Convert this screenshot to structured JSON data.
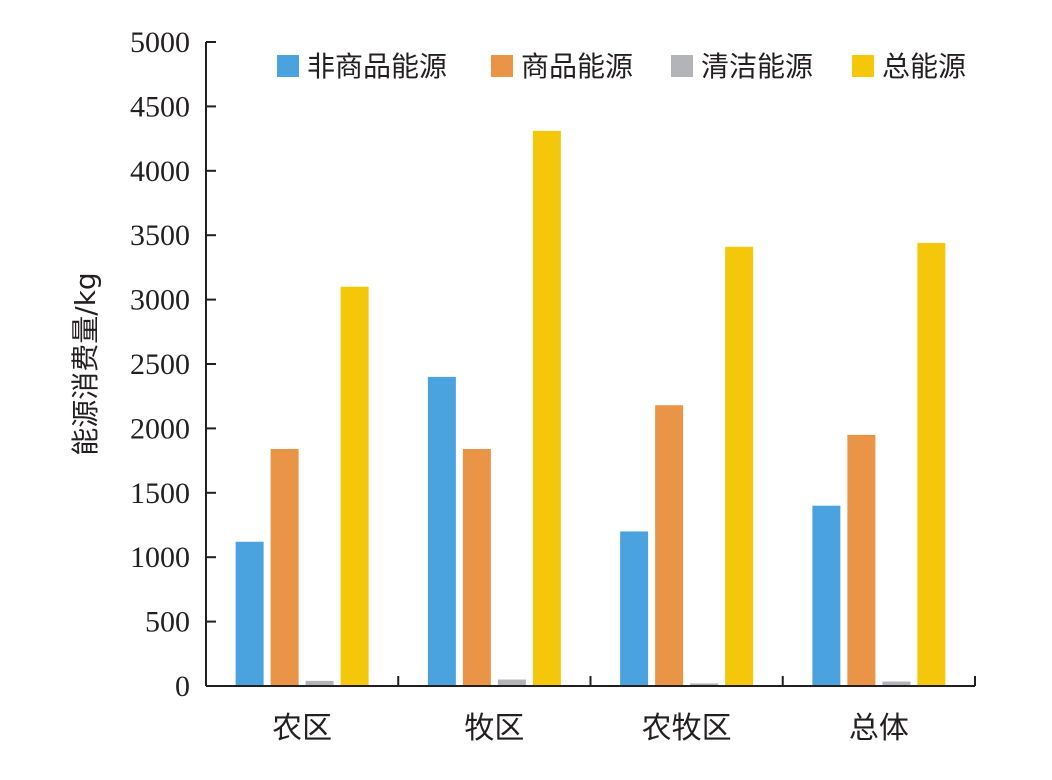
{
  "chart_data": {
    "type": "bar",
    "title": "",
    "xlabel": "",
    "ylabel": "能源消费量/kg",
    "ylim": [
      0,
      5000
    ],
    "yticks": [
      0,
      500,
      1000,
      1500,
      2000,
      2500,
      3000,
      3500,
      4000,
      4500,
      5000
    ],
    "categories": [
      "农区",
      "牧区",
      "农牧区",
      "总体"
    ],
    "series": [
      {
        "name": "非商品能源",
        "color": "#4aa3df",
        "values": [
          1120,
          2400,
          1200,
          1400
        ]
      },
      {
        "name": "商品能源",
        "color": "#e99447",
        "values": [
          1840,
          1840,
          2180,
          1950
        ]
      },
      {
        "name": "清洁能源",
        "color": "#b3b4b8",
        "values": [
          40,
          50,
          20,
          35
        ]
      },
      {
        "name": "总能源",
        "color": "#f5c70a",
        "values": [
          3100,
          4310,
          3410,
          3440
        ]
      }
    ],
    "legend": "top-right",
    "grid": false
  }
}
